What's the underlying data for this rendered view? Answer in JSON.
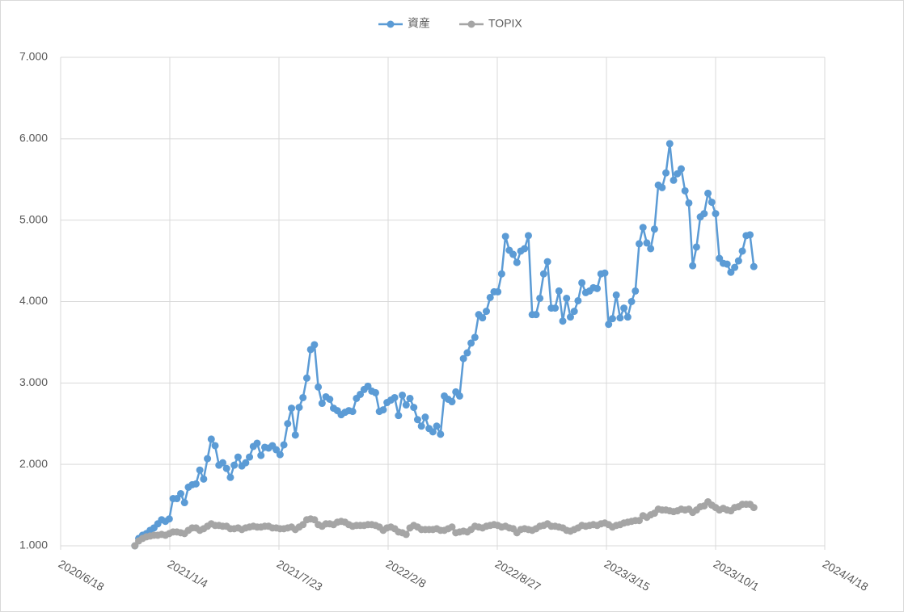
{
  "chart_data": {
    "type": "line",
    "x": [
      "2020/11/1",
      "2020/11/8",
      "2020/11/15",
      "2020/11/22",
      "2020/11/29",
      "2020/12/6",
      "2020/12/13",
      "2020/12/20",
      "2020/12/27",
      "2021/1/3",
      "2021/1/10",
      "2021/1/17",
      "2021/1/24",
      "2021/1/31",
      "2021/2/7",
      "2021/2/14",
      "2021/2/21",
      "2021/2/28",
      "2021/3/7",
      "2021/3/14",
      "2021/3/21",
      "2021/3/28",
      "2021/4/4",
      "2021/4/11",
      "2021/4/18",
      "2021/4/25",
      "2021/5/2",
      "2021/5/9",
      "2021/5/16",
      "2021/5/23",
      "2021/5/30",
      "2021/6/6",
      "2021/6/13",
      "2021/6/20",
      "2021/6/27",
      "2021/7/4",
      "2021/7/11",
      "2021/7/18",
      "2021/7/25",
      "2021/8/1",
      "2021/8/8",
      "2021/8/15",
      "2021/8/22",
      "2021/8/29",
      "2021/9/5",
      "2021/9/12",
      "2021/9/19",
      "2021/9/26",
      "2021/10/3",
      "2021/10/10",
      "2021/10/17",
      "2021/10/24",
      "2021/10/31",
      "2021/11/7",
      "2021/11/14",
      "2021/11/21",
      "2021/11/28",
      "2021/12/5",
      "2021/12/12",
      "2021/12/19",
      "2021/12/26",
      "2022/1/2",
      "2022/1/9",
      "2022/1/16",
      "2022/1/23",
      "2022/1/30",
      "2022/2/6",
      "2022/2/13",
      "2022/2/20",
      "2022/2/27",
      "2022/3/6",
      "2022/3/13",
      "2022/3/20",
      "2022/3/27",
      "2022/4/3",
      "2022/4/10",
      "2022/4/17",
      "2022/4/24",
      "2022/5/1",
      "2022/5/8",
      "2022/5/15",
      "2022/5/22",
      "2022/5/29",
      "2022/6/5",
      "2022/6/12",
      "2022/6/19",
      "2022/6/26",
      "2022/7/3",
      "2022/7/10",
      "2022/7/17",
      "2022/7/24",
      "2022/7/31",
      "2022/8/7",
      "2022/8/14",
      "2022/8/21",
      "2022/8/28",
      "2022/9/4",
      "2022/9/11",
      "2022/9/18",
      "2022/9/25",
      "2022/10/2",
      "2022/10/9",
      "2022/10/16",
      "2022/10/23",
      "2022/10/30",
      "2022/11/6",
      "2022/11/13",
      "2022/11/20",
      "2022/11/27",
      "2022/12/4",
      "2022/12/11",
      "2022/12/18",
      "2022/12/25",
      "2023/1/1",
      "2023/1/8",
      "2023/1/15",
      "2023/1/22",
      "2023/1/29",
      "2023/2/5",
      "2023/2/12",
      "2023/2/19",
      "2023/2/26",
      "2023/3/5",
      "2023/3/12",
      "2023/3/19",
      "2023/3/26",
      "2023/4/2",
      "2023/4/9",
      "2023/4/16",
      "2023/4/23",
      "2023/4/30",
      "2023/5/7",
      "2023/5/14",
      "2023/5/21",
      "2023/5/28",
      "2023/6/4",
      "2023/6/11",
      "2023/6/18",
      "2023/6/25",
      "2023/7/2",
      "2023/7/9",
      "2023/7/16",
      "2023/7/23",
      "2023/7/30",
      "2023/8/6",
      "2023/8/13",
      "2023/8/20",
      "2023/8/27",
      "2023/9/3",
      "2023/9/10",
      "2023/9/17",
      "2023/9/24",
      "2023/10/1",
      "2023/10/8",
      "2023/10/15",
      "2023/10/22",
      "2023/10/29",
      "2023/11/5",
      "2023/11/12",
      "2023/11/19",
      "2023/11/26",
      "2023/12/3",
      "2023/12/10"
    ],
    "series": [
      {
        "name": "資産",
        "color": "#5b9bd5",
        "values": [
          1.0,
          1.09,
          1.13,
          1.15,
          1.19,
          1.22,
          1.27,
          1.32,
          1.3,
          1.33,
          1.58,
          1.58,
          1.64,
          1.53,
          1.72,
          1.75,
          1.76,
          1.93,
          1.82,
          2.07,
          2.31,
          2.23,
          1.99,
          2.02,
          1.95,
          1.84,
          1.99,
          2.09,
          1.98,
          2.02,
          2.09,
          2.22,
          2.26,
          2.11,
          2.21,
          2.2,
          2.23,
          2.18,
          2.12,
          2.24,
          2.5,
          2.69,
          2.36,
          2.7,
          2.82,
          3.06,
          3.41,
          3.47,
          2.95,
          2.75,
          2.83,
          2.8,
          2.69,
          2.66,
          2.61,
          2.64,
          2.66,
          2.65,
          2.81,
          2.86,
          2.92,
          2.96,
          2.9,
          2.88,
          2.65,
          2.67,
          2.76,
          2.79,
          2.82,
          2.6,
          2.85,
          2.73,
          2.81,
          2.7,
          2.55,
          2.47,
          2.58,
          2.44,
          2.4,
          2.47,
          2.37,
          2.84,
          2.8,
          2.77,
          2.89,
          2.84,
          3.3,
          3.37,
          3.49,
          3.56,
          3.84,
          3.8,
          3.88,
          4.05,
          4.12,
          4.12,
          4.34,
          4.8,
          4.63,
          4.58,
          4.48,
          4.62,
          4.65,
          4.81,
          3.84,
          3.84,
          4.04,
          4.34,
          4.49,
          3.92,
          3.92,
          4.13,
          3.76,
          4.04,
          3.81,
          3.88,
          4.01,
          4.23,
          4.11,
          4.13,
          4.17,
          4.16,
          4.34,
          4.35,
          3.72,
          3.79,
          4.08,
          3.8,
          3.92,
          3.81,
          4.0,
          4.13,
          4.71,
          4.91,
          4.72,
          4.65,
          4.89,
          5.43,
          5.4,
          5.58,
          5.94,
          5.49,
          5.57,
          5.63,
          5.36,
          5.21,
          4.44,
          4.67,
          5.04,
          5.08,
          5.33,
          5.22,
          5.08,
          4.53,
          4.47,
          4.46,
          4.36,
          4.42,
          4.5,
          4.62,
          4.81,
          4.82,
          4.43
        ]
      },
      {
        "name": "TOPIX",
        "color": "#a5a5a5",
        "values": [
          1.0,
          1.06,
          1.09,
          1.11,
          1.12,
          1.13,
          1.13,
          1.14,
          1.13,
          1.15,
          1.17,
          1.17,
          1.16,
          1.15,
          1.19,
          1.22,
          1.22,
          1.19,
          1.21,
          1.24,
          1.27,
          1.25,
          1.25,
          1.24,
          1.24,
          1.21,
          1.21,
          1.22,
          1.2,
          1.22,
          1.23,
          1.24,
          1.23,
          1.23,
          1.24,
          1.24,
          1.22,
          1.22,
          1.21,
          1.21,
          1.22,
          1.23,
          1.2,
          1.23,
          1.26,
          1.32,
          1.33,
          1.32,
          1.26,
          1.24,
          1.27,
          1.27,
          1.26,
          1.29,
          1.3,
          1.29,
          1.26,
          1.24,
          1.25,
          1.25,
          1.25,
          1.26,
          1.26,
          1.25,
          1.23,
          1.19,
          1.22,
          1.23,
          1.21,
          1.17,
          1.16,
          1.14,
          1.22,
          1.25,
          1.23,
          1.2,
          1.2,
          1.2,
          1.2,
          1.21,
          1.19,
          1.19,
          1.21,
          1.23,
          1.16,
          1.17,
          1.18,
          1.17,
          1.2,
          1.24,
          1.23,
          1.22,
          1.24,
          1.25,
          1.26,
          1.25,
          1.23,
          1.24,
          1.22,
          1.21,
          1.16,
          1.2,
          1.21,
          1.2,
          1.19,
          1.21,
          1.24,
          1.25,
          1.27,
          1.24,
          1.24,
          1.23,
          1.22,
          1.19,
          1.18,
          1.2,
          1.22,
          1.25,
          1.24,
          1.25,
          1.26,
          1.25,
          1.27,
          1.28,
          1.26,
          1.23,
          1.25,
          1.26,
          1.28,
          1.29,
          1.3,
          1.31,
          1.31,
          1.37,
          1.35,
          1.38,
          1.4,
          1.45,
          1.44,
          1.44,
          1.43,
          1.42,
          1.43,
          1.45,
          1.44,
          1.45,
          1.41,
          1.44,
          1.48,
          1.49,
          1.54,
          1.5,
          1.47,
          1.44,
          1.46,
          1.44,
          1.43,
          1.47,
          1.48,
          1.51,
          1.51,
          1.51,
          1.47
        ]
      }
    ],
    "xlim": [
      "2020/6/18",
      "2024/4/18"
    ],
    "xticks": [
      "2020/6/18",
      "2021/1/4",
      "2021/7/23",
      "2022/2/8",
      "2022/8/27",
      "2023/3/15",
      "2023/10/1",
      "2024/4/18"
    ],
    "ylim": [
      1,
      7
    ],
    "yticks": [
      {
        "value": 1,
        "label": "1.000"
      },
      {
        "value": 2,
        "label": "2.000"
      },
      {
        "value": 3,
        "label": "3.000"
      },
      {
        "value": 4,
        "label": "4.000"
      },
      {
        "value": 5,
        "label": "5.000"
      },
      {
        "value": 6,
        "label": "6.000"
      },
      {
        "value": 7,
        "label": "7.000"
      }
    ],
    "grid": true,
    "legend": "top"
  }
}
